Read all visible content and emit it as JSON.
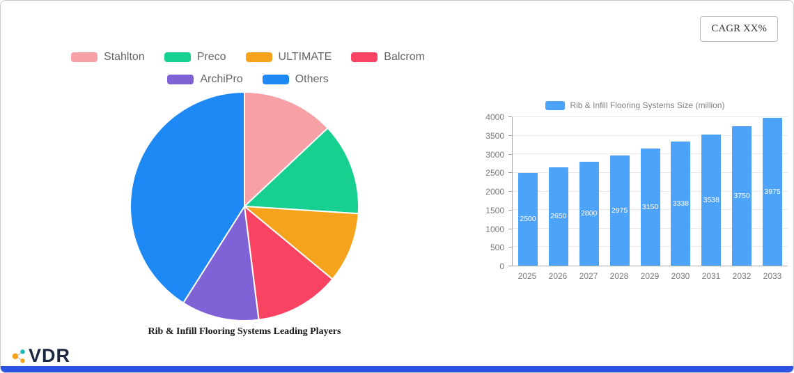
{
  "header": {
    "cagr_badge": "CAGR XX%"
  },
  "footer": {
    "brand": "VDR"
  },
  "chart_data": [
    {
      "type": "pie",
      "title": "Rib & Infill Flooring Systems Leading Players",
      "labels": [
        "Stahlton",
        "Preco",
        "ULTIMATE",
        "Balcrom",
        "ArchiPro",
        "Others"
      ],
      "values": [
        13,
        13,
        10,
        12,
        11,
        41
      ],
      "colors": [
        "#F7A1A7",
        "#17CF8E",
        "#F5A31D",
        "#F94362",
        "#7E62D6",
        "#1E88F5"
      ],
      "legend_position": "top",
      "start_angle_deg": 0,
      "direction": "clockwise"
    },
    {
      "type": "bar",
      "legend": "Rib & Infill Flooring Systems Size (million)",
      "categories": [
        "2025",
        "2026",
        "2027",
        "2028",
        "2029",
        "2030",
        "2031",
        "2032",
        "2033"
      ],
      "values": [
        2500,
        2650,
        2800,
        2975,
        3150,
        3338,
        3538,
        3750,
        3975
      ],
      "ylim": [
        0,
        4000
      ],
      "yticks": [
        0,
        500,
        1000,
        1500,
        2000,
        2500,
        3000,
        3500,
        4000
      ],
      "bar_color": "#4DA3F7",
      "grid": true,
      "value_labels": "inside-center-white"
    }
  ]
}
